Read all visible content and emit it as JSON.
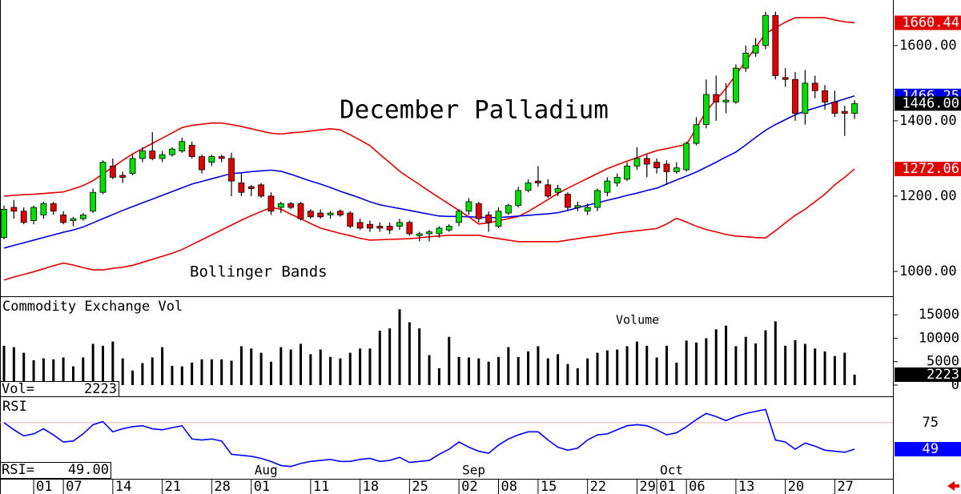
{
  "chart_data": [
    {
      "type": "candlestick",
      "title": "December Palladium",
      "annotation": "Bollinger Bands",
      "categories": [
        null,
        null,
        null,
        "01",
        null,
        null,
        "07",
        null,
        null,
        null,
        null,
        "14",
        null,
        null,
        null,
        null,
        "21",
        null,
        null,
        null,
        null,
        "28",
        null,
        null,
        null,
        "01",
        null,
        null,
        null,
        null,
        null,
        "11",
        null,
        null,
        null,
        null,
        "18",
        null,
        null,
        null,
        null,
        "25",
        null,
        null,
        null,
        null,
        "02",
        null,
        null,
        null,
        "08",
        null,
        null,
        null,
        "15",
        null,
        null,
        null,
        null,
        "22",
        null,
        null,
        null,
        null,
        "29",
        null,
        "01",
        null,
        null,
        "06",
        null,
        null,
        null,
        null,
        "13",
        null,
        null,
        null,
        null,
        "20",
        null,
        null,
        null,
        null,
        "27",
        null,
        null
      ],
      "month_labels": [
        {
          "label": "Aug",
          "index": 25
        },
        {
          "label": "Sep",
          "index": 46
        },
        {
          "label": "Oct",
          "index": 66
        }
      ],
      "open": [
        1090,
        1170,
        1160,
        1135,
        1150,
        1180,
        1150,
        1135,
        1140,
        1160,
        1210,
        1280,
        1255,
        1260,
        1300,
        1320,
        1300,
        1310,
        1320,
        1335,
        1305,
        1290,
        1305,
        1300,
        1235,
        1225,
        1230,
        1200,
        1170,
        1180,
        1180,
        1160,
        1155,
        1150,
        1160,
        1155,
        1130,
        1125,
        1120,
        1120,
        1120,
        1130,
        1095,
        1100,
        1100,
        1110,
        1130,
        1160,
        1180,
        1150,
        1120,
        1155,
        1175,
        1215,
        1240,
        1230,
        1210,
        1205,
        1170,
        1160,
        1170,
        1210,
        1235,
        1245,
        1280,
        1300,
        1290,
        1285,
        1265,
        1270,
        1340,
        1390,
        1470,
        1450,
        1450,
        1540,
        1580,
        1600,
        1680,
        1515,
        1510,
        1420,
        1500,
        1480,
        1450,
        1425,
        1420
      ],
      "high": [
        1175,
        1190,
        1170,
        1175,
        1185,
        1185,
        1160,
        1145,
        1155,
        1220,
        1295,
        1300,
        1265,
        1310,
        1330,
        1370,
        1320,
        1330,
        1355,
        1345,
        1310,
        1310,
        1310,
        1315,
        1260,
        1230,
        1235,
        1210,
        1185,
        1185,
        1185,
        1165,
        1165,
        1160,
        1165,
        1160,
        1140,
        1135,
        1130,
        1130,
        1140,
        1135,
        1105,
        1110,
        1120,
        1125,
        1165,
        1195,
        1185,
        1160,
        1170,
        1180,
        1225,
        1245,
        1280,
        1245,
        1230,
        1210,
        1185,
        1180,
        1220,
        1250,
        1260,
        1290,
        1330,
        1310,
        1300,
        1295,
        1290,
        1345,
        1410,
        1510,
        1520,
        1500,
        1550,
        1600,
        1620,
        1690,
        1690,
        1540,
        1530,
        1535,
        1520,
        1495,
        1480,
        1440,
        1455
      ],
      "low": [
        1085,
        1140,
        1125,
        1125,
        1140,
        1150,
        1125,
        1120,
        1135,
        1155,
        1205,
        1245,
        1235,
        1255,
        1290,
        1295,
        1290,
        1305,
        1315,
        1300,
        1260,
        1280,
        1290,
        1200,
        1200,
        1200,
        1195,
        1150,
        1155,
        1165,
        1135,
        1140,
        1140,
        1140,
        1145,
        1115,
        1110,
        1105,
        1105,
        1100,
        1110,
        1095,
        1080,
        1080,
        1090,
        1105,
        1120,
        1150,
        1130,
        1105,
        1115,
        1150,
        1170,
        1210,
        1225,
        1195,
        1200,
        1160,
        1160,
        1150,
        1160,
        1200,
        1225,
        1240,
        1270,
        1250,
        1260,
        1230,
        1260,
        1265,
        1335,
        1380,
        1400,
        1420,
        1445,
        1530,
        1570,
        1590,
        1510,
        1490,
        1400,
        1390,
        1460,
        1430,
        1410,
        1360,
        1405
      ],
      "close": [
        1165,
        1160,
        1130,
        1170,
        1180,
        1160,
        1130,
        1140,
        1150,
        1210,
        1290,
        1250,
        1250,
        1300,
        1320,
        1300,
        1310,
        1325,
        1345,
        1305,
        1270,
        1305,
        1300,
        1240,
        1210,
        1220,
        1200,
        1160,
        1180,
        1170,
        1140,
        1145,
        1145,
        1155,
        1150,
        1120,
        1115,
        1115,
        1115,
        1110,
        1130,
        1100,
        1100,
        1105,
        1115,
        1120,
        1160,
        1185,
        1140,
        1130,
        1160,
        1175,
        1215,
        1235,
        1235,
        1200,
        1220,
        1170,
        1175,
        1170,
        1215,
        1240,
        1250,
        1280,
        1300,
        1285,
        1275,
        1265,
        1275,
        1340,
        1390,
        1470,
        1450,
        1455,
        1540,
        1580,
        1600,
        1680,
        1520,
        1510,
        1420,
        1500,
        1480,
        1450,
        1420,
        1420,
        1446
      ],
      "close_label": "1446.00",
      "up_color": "#00e000",
      "down_color": "#e00000",
      "upper_band": {
        "color": "#e00000",
        "values": [
          1200,
          1202,
          1204,
          1205,
          1207,
          1209,
          1211,
          1219,
          1228,
          1241,
          1259,
          1277,
          1295,
          1312,
          1326,
          1340,
          1354,
          1368,
          1382,
          1388,
          1391,
          1394,
          1394,
          1390,
          1385,
          1379,
          1373,
          1367,
          1365,
          1368,
          1370,
          1373,
          1376,
          1379,
          1376,
          1363,
          1349,
          1334,
          1311,
          1289,
          1266,
          1248,
          1231,
          1213,
          1196,
          1179,
          1162,
          1145,
          1126,
          1129,
          1135,
          1140,
          1146,
          1159,
          1175,
          1191,
          1207,
          1221,
          1234,
          1247,
          1260,
          1273,
          1283,
          1293,
          1302,
          1312,
          1321,
          1326,
          1332,
          1337,
          1380,
          1426,
          1456,
          1486,
          1522,
          1559,
          1595,
          1632,
          1647,
          1662,
          1674,
          1674,
          1674,
          1674,
          1668,
          1663,
          1660.44
        ]
      },
      "middle_band": {
        "color": "#0000e0",
        "values": [
          1062,
          1069,
          1076,
          1083,
          1090,
          1097,
          1104,
          1110,
          1118,
          1129,
          1140,
          1151,
          1162,
          1172,
          1182,
          1192,
          1202,
          1212,
          1222,
          1232,
          1239,
          1246,
          1253,
          1260,
          1262,
          1265,
          1267,
          1269,
          1266,
          1258,
          1249,
          1240,
          1232,
          1223,
          1213,
          1204,
          1195,
          1185,
          1177,
          1172,
          1167,
          1162,
          1157,
          1152,
          1147,
          1146,
          1146,
          1145,
          1144,
          1143,
          1143,
          1145,
          1147,
          1149,
          1151,
          1153,
          1156,
          1162,
          1169,
          1176,
          1182,
          1189,
          1195,
          1202,
          1208,
          1215,
          1221,
          1232,
          1243,
          1253,
          1264,
          1277,
          1290,
          1304,
          1317,
          1336,
          1356,
          1375,
          1390,
          1403,
          1416,
          1426,
          1434,
          1442,
          1450,
          1458,
          1466.25
        ]
      },
      "lower_band": {
        "color": "#e00000",
        "values": [
          977,
          985,
          992,
          999,
          1007,
          1015,
          1022,
          1017,
          1010,
          1004,
          1004,
          1008,
          1011,
          1016,
          1024,
          1032,
          1040,
          1048,
          1058,
          1071,
          1084,
          1097,
          1110,
          1123,
          1136,
          1148,
          1159,
          1170,
          1165,
          1152,
          1140,
          1127,
          1115,
          1108,
          1101,
          1095,
          1088,
          1083,
          1084,
          1085,
          1086,
          1087,
          1089,
          1092,
          1094,
          1096,
          1096,
          1096,
          1096,
          1091,
          1087,
          1083,
          1079,
          1079,
          1079,
          1079,
          1079,
          1083,
          1087,
          1091,
          1094,
          1098,
          1102,
          1105,
          1108,
          1111,
          1114,
          1126,
          1141,
          1131,
          1120,
          1111,
          1105,
          1098,
          1094,
          1092,
          1090,
          1089,
          1108,
          1129,
          1149,
          1165,
          1185,
          1205,
          1230,
          1250,
          1272.06
        ]
      },
      "ylim": [
        934,
        1721
      ],
      "yticks": [
        {
          "value": 1600,
          "label": "1600.00"
        },
        {
          "value": 1400,
          "label": "1400.00"
        },
        {
          "value": 1200,
          "label": "1200.00"
        },
        {
          "value": 1000,
          "label": "1000.00"
        }
      ]
    },
    {
      "type": "bar",
      "title": "Commodity Exchange Vol",
      "label": "Volume",
      "readout_label": "Vol=",
      "color": "#000000",
      "values": [
        8400,
        8100,
        6900,
        5300,
        5700,
        5500,
        5900,
        4000,
        5900,
        8800,
        8400,
        9300,
        5700,
        3100,
        4700,
        5900,
        8100,
        4100,
        4000,
        4800,
        5500,
        5500,
        5500,
        5200,
        8300,
        7800,
        6900,
        5000,
        8100,
        7600,
        8800,
        6600,
        7600,
        6000,
        5700,
        6900,
        7800,
        7800,
        11600,
        12100,
        16200,
        13400,
        12100,
        6400,
        3600,
        10300,
        6000,
        5900,
        5700,
        5000,
        6000,
        8100,
        6000,
        7200,
        8300,
        5700,
        6600,
        4500,
        3600,
        5700,
        6900,
        7400,
        7600,
        8300,
        9300,
        8400,
        5900,
        8400,
        4800,
        9500,
        9100,
        10000,
        11900,
        12700,
        8300,
        10300,
        8900,
        11700,
        13600,
        8400,
        9600,
        8800,
        7800,
        7200,
        6200,
        6900,
        2223
      ],
      "ylim": [
        -2400,
        18800
      ],
      "yticks": [
        15000,
        10000,
        5000,
        0
      ]
    },
    {
      "type": "line",
      "title": "RSI",
      "readout_label": "RSI=",
      "color": "#0000ff",
      "values": [
        75,
        68,
        62,
        64,
        69,
        63,
        56,
        57,
        64,
        73,
        76,
        66,
        69,
        71,
        72,
        69,
        68,
        70,
        72,
        59,
        58,
        59,
        57,
        44,
        43,
        42,
        40,
        37,
        33,
        32,
        35,
        37,
        38,
        39,
        37,
        37,
        39,
        40,
        37,
        38,
        41,
        36,
        37,
        38,
        44,
        49,
        56,
        51,
        47,
        45,
        53,
        59,
        63,
        66,
        66,
        58,
        51,
        48,
        50,
        58,
        63,
        64,
        68,
        72,
        73,
        72,
        68,
        63,
        65,
        71,
        78,
        84,
        81,
        77,
        81,
        84,
        86,
        88,
        58,
        56,
        49,
        55,
        52,
        48,
        47,
        46,
        49
      ],
      "value_label": "49.00",
      "ylim": [
        20,
        100
      ],
      "yticks": [
        75
      ]
    }
  ]
}
